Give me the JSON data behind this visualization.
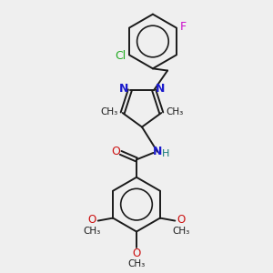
{
  "bg_color": "#efefef",
  "bond_color": "#1a1a1a",
  "bond_width": 1.4,
  "figsize": [
    3.0,
    3.0
  ],
  "dpi": 100,
  "colors": {
    "N": "#1a1acc",
    "O": "#cc1111",
    "Cl": "#22aa22",
    "F": "#cc11cc",
    "H": "#117777",
    "C": "#1a1a1a"
  },
  "xlim": [
    0,
    10
  ],
  "ylim": [
    0,
    10
  ]
}
